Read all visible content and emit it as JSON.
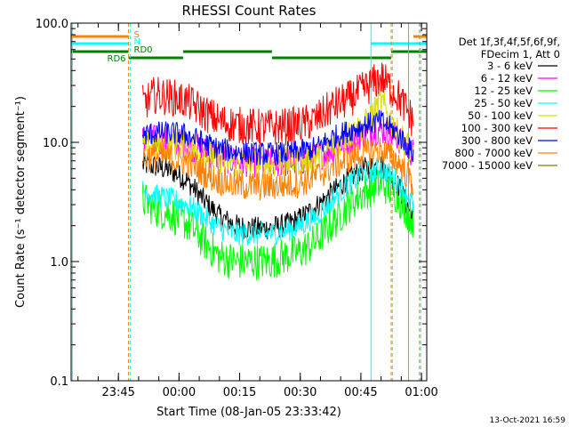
{
  "chart_data": {
    "type": "line",
    "title": "RHESSI Count Rates",
    "xlabel": "Start Time (08-Jan-05 23:33:42)",
    "ylabel": "Count Rate (s⁻¹ detector segment⁻¹)",
    "yscale": "log",
    "ylim": [
      0.1,
      100.0
    ],
    "xlim": [
      -6.7,
      81.3
    ],
    "x_unit": "minutes since 23:40",
    "ytick_labels": [
      "100.0",
      "10.0",
      "1.0",
      "0.1"
    ],
    "yticks": [
      100,
      10,
      1,
      0.1
    ],
    "xticks": [
      5,
      20,
      35,
      50,
      65,
      80
    ],
    "xtick_labels": [
      "23:45",
      "00:00",
      "00:15",
      "00:30",
      "00:45",
      "01:00"
    ],
    "grid": false,
    "legend_position": "right",
    "legend_header": [
      "Det 1f,3f,4f,5f,6f,9f,",
      "FDecim 1, Att 0"
    ],
    "series": [
      {
        "name": "3 - 6 keV",
        "color": "#000000",
        "x": [
          11,
          14,
          18,
          22,
          26,
          30,
          34,
          38,
          42,
          46,
          50,
          54,
          58,
          62,
          66,
          70,
          74,
          78
        ],
        "values": [
          6.5,
          6.3,
          5.8,
          4.8,
          3.3,
          2.4,
          2.0,
          1.9,
          1.9,
          2.0,
          2.3,
          2.9,
          3.8,
          5.0,
          6.0,
          6.5,
          4.5,
          2.3
        ]
      },
      {
        "name": "6 - 12 keV",
        "color": "#ff00ff",
        "x": [
          11,
          14,
          18,
          22,
          26,
          30,
          34,
          38,
          42,
          46,
          50,
          54,
          58,
          62,
          66,
          70,
          74,
          78
        ],
        "values": [
          10.5,
          10.5,
          10.2,
          9.5,
          8.5,
          7.5,
          7.0,
          6.8,
          6.7,
          6.8,
          7.0,
          7.5,
          9.0,
          10.5,
          12.0,
          13.0,
          11.0,
          8.0
        ]
      },
      {
        "name": "12 - 25 keV",
        "color": "#00ff00",
        "x": [
          11,
          14,
          18,
          22,
          26,
          30,
          34,
          38,
          42,
          46,
          50,
          54,
          58,
          62,
          66,
          70,
          74,
          78
        ],
        "values": [
          3.3,
          2.8,
          2.5,
          2.1,
          1.5,
          1.1,
          1.0,
          1.0,
          1.0,
          1.1,
          1.2,
          1.5,
          2.1,
          3.0,
          3.9,
          4.6,
          3.6,
          2.2
        ]
      },
      {
        "name": "25 - 50 keV",
        "color": "#00ffff",
        "x": [
          11,
          14,
          18,
          22,
          26,
          30,
          34,
          38,
          42,
          46,
          50,
          54,
          58,
          62,
          66,
          70,
          74,
          78
        ],
        "values": [
          4.0,
          3.6,
          3.3,
          3.0,
          2.4,
          1.9,
          1.7,
          1.7,
          1.7,
          1.8,
          2.0,
          2.4,
          3.3,
          4.5,
          5.5,
          6.0,
          4.8,
          3.0
        ]
      },
      {
        "name": "50 - 100 keV",
        "color": "#dddd00",
        "x": [
          11,
          14,
          18,
          22,
          26,
          30,
          34,
          38,
          42,
          46,
          50,
          54,
          58,
          62,
          66,
          70,
          74,
          78
        ],
        "values": [
          9.5,
          9.5,
          9.4,
          9.0,
          8.0,
          7.2,
          6.8,
          6.6,
          6.6,
          6.8,
          7.0,
          7.6,
          9.5,
          11.5,
          14.0,
          22.0,
          12.0,
          8.0
        ]
      },
      {
        "name": "100 - 300 keV",
        "color": "#ff0000",
        "x": [
          11,
          14,
          18,
          22,
          26,
          30,
          34,
          38,
          42,
          46,
          50,
          54,
          58,
          62,
          66,
          70,
          74,
          78
        ],
        "values": [
          21,
          25,
          24,
          22,
          18,
          15,
          14,
          13.5,
          13.3,
          13.5,
          14,
          15.5,
          20,
          23,
          28,
          35,
          25,
          15
        ]
      },
      {
        "name": "300 - 800 keV",
        "color": "#0000ff",
        "x": [
          11,
          14,
          18,
          22,
          26,
          30,
          34,
          38,
          42,
          46,
          50,
          54,
          58,
          62,
          66,
          70,
          74,
          78
        ],
        "values": [
          11.5,
          12.0,
          12.0,
          11.5,
          10.0,
          8.8,
          8.3,
          8.1,
          8.0,
          8.1,
          8.4,
          9.0,
          11.0,
          12.5,
          14.0,
          15.0,
          12.0,
          8.0
        ]
      },
      {
        "name": "800 - 7000 keV",
        "color": "#ff8000",
        "x": [
          11,
          14,
          18,
          22,
          26,
          30,
          34,
          38,
          42,
          46,
          50,
          54,
          58,
          62,
          66,
          70,
          74,
          78
        ],
        "values": [
          7.5,
          7.6,
          7.3,
          6.8,
          5.6,
          4.8,
          4.4,
          4.3,
          4.3,
          4.4,
          4.6,
          5.2,
          6.3,
          7.3,
          8.2,
          8.6,
          7.0,
          4.5
        ]
      },
      {
        "name": "7000 - 15000 keV",
        "color": "#808000",
        "x": [],
        "values": []
      }
    ],
    "markers": {
      "vertical_lines": [
        {
          "x": -6.4,
          "color": "#00ffff",
          "dashed": false
        },
        {
          "x": 7.5,
          "color": "#ff8000",
          "dashed": true
        },
        {
          "x": 7.9,
          "color": "#00ffff",
          "dashed": true
        },
        {
          "x": 67.5,
          "color": "#00ffff",
          "dashed": false
        },
        {
          "x": 72.5,
          "color": "#ff8000",
          "dashed": true
        },
        {
          "x": 72.8,
          "color": "#00ffff",
          "dashed": true
        },
        {
          "x": 76.8,
          "color": "#ff8000",
          "dashed": false
        },
        {
          "x": 79.5,
          "color": "#ff8000",
          "dashed": true
        },
        {
          "x": 79.8,
          "color": "#00ffff",
          "dashed": true
        }
      ],
      "flag_bars": [
        {
          "label": "S",
          "color": "#ff8000",
          "segments": [
            [
              -6.7,
              7.5
            ],
            [
              78.0,
              81.3
            ]
          ],
          "level": 1
        },
        {
          "label": "N",
          "color": "#00ffff",
          "segments": [
            [
              -6.7,
              7.5
            ],
            [
              67.5,
              81.3
            ]
          ],
          "level": 2
        },
        {
          "label": "RD0",
          "color": "#008000",
          "segments": [
            [
              -6.7,
              7.5
            ],
            [
              21.0,
              43.0
            ],
            [
              72.5,
              81.3
            ]
          ],
          "level": 3
        },
        {
          "label": "RD6",
          "color": "#008000",
          "segments": [
            [
              7.5,
              21.0
            ],
            [
              43.0,
              72.5
            ]
          ],
          "level": 4
        }
      ]
    }
  },
  "footer_timestamp": "13-Oct-2021 16:59"
}
